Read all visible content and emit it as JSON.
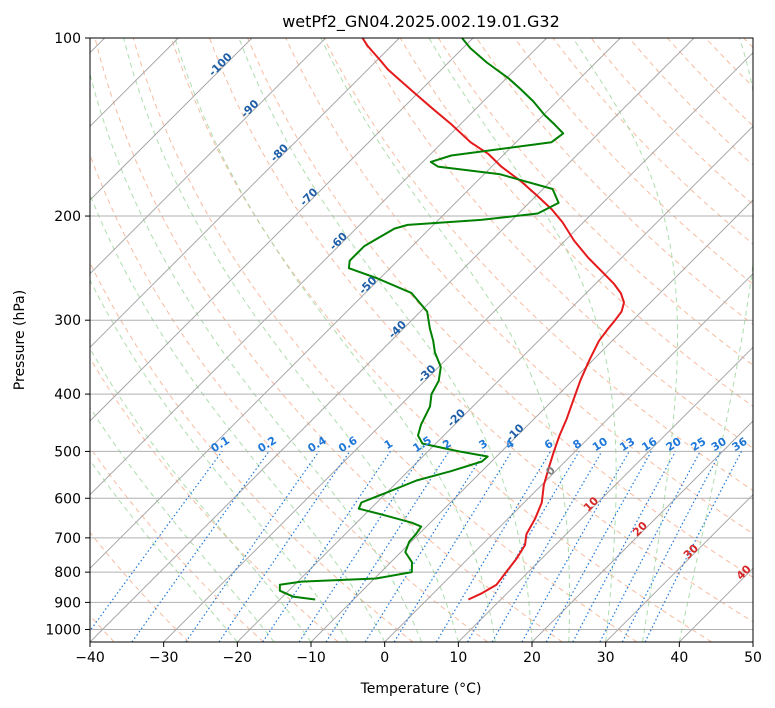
{
  "chart_data": {
    "type": "line",
    "title": "wetPf2_GN04.2025.002.19.01.G32",
    "xlabel": "Temperature (°C)",
    "ylabel": "Pressure (hPa)",
    "xlim": [
      -40,
      50
    ],
    "ylim": [
      1050,
      100
    ],
    "y_scale": "log",
    "x_ticks": [
      -40,
      -30,
      -20,
      -10,
      0,
      10,
      20,
      30,
      40,
      50
    ],
    "x_tick_labels": [
      "−40",
      "−30",
      "−20",
      "−10",
      "0",
      "10",
      "20",
      "30",
      "40",
      "50"
    ],
    "y_ticks": [
      100,
      200,
      300,
      400,
      500,
      600,
      700,
      800,
      900,
      1000
    ],
    "y_tick_labels": [
      "100",
      "200",
      "300",
      "400",
      "500",
      "600",
      "700",
      "800",
      "900",
      "1000"
    ],
    "grid": true,
    "skew": "skew-T log-P diagram",
    "colors": {
      "temperature": "#e41a1c",
      "dewpoint": "#008000",
      "dry_adiabat": "#f4a582",
      "moist_adiabat": "#98d598",
      "mixing_ratio": "#1f78d8",
      "isotherm": "#888888",
      "isotherm_label_cold": "#1f5fa8",
      "isotherm_label_warm": "#d62728"
    },
    "series": [
      {
        "name": "",
        "role": "temperature",
        "points": [
          [
            5.6,
            890
          ],
          [
            6.5,
            870
          ],
          [
            7.4,
            840
          ],
          [
            7.0,
            800
          ],
          [
            6.6,
            760
          ],
          [
            5.9,
            720
          ],
          [
            4.6,
            690
          ],
          [
            3.7,
            650
          ],
          [
            2.4,
            610
          ],
          [
            0.3,
            570
          ],
          [
            -1.5,
            530
          ],
          [
            -2.9,
            500
          ],
          [
            -4.3,
            470
          ],
          [
            -5.6,
            440
          ],
          [
            -7.2,
            410
          ],
          [
            -8.9,
            380
          ],
          [
            -10.5,
            350
          ],
          [
            -11.8,
            325
          ],
          [
            -12.2,
            310
          ],
          [
            -12.4,
            300
          ],
          [
            -12.7,
            290
          ],
          [
            -13.6,
            280
          ],
          [
            -15.3,
            270
          ],
          [
            -17.6,
            260
          ],
          [
            -20.3,
            250
          ],
          [
            -24.6,
            235
          ],
          [
            -28.8,
            220
          ],
          [
            -32.8,
            205
          ],
          [
            -36.0,
            195
          ],
          [
            -39.8,
            185
          ],
          [
            -43.9,
            175
          ],
          [
            -48.7,
            165
          ],
          [
            -52.2,
            157
          ],
          [
            -56.2,
            150
          ],
          [
            -61.2,
            140
          ],
          [
            -65.7,
            132
          ],
          [
            -70.4,
            124
          ],
          [
            -74.1,
            118
          ],
          [
            -77.3,
            113
          ],
          [
            -79.6,
            109
          ],
          [
            -83.3,
            103
          ],
          [
            -85.0,
            100
          ]
        ]
      },
      {
        "name": "",
        "role": "dewpoint",
        "points": [
          [
            -15.2,
            890
          ],
          [
            -18.6,
            880
          ],
          [
            -21.2,
            860
          ],
          [
            -22.0,
            840
          ],
          [
            -19.5,
            830
          ],
          [
            -9.8,
            820
          ],
          [
            -5.8,
            800
          ],
          [
            -7.1,
            770
          ],
          [
            -9.4,
            740
          ],
          [
            -10.3,
            710
          ],
          [
            -10.4,
            690
          ],
          [
            -10.7,
            670
          ],
          [
            -12.5,
            660
          ],
          [
            -17.5,
            640
          ],
          [
            -21.6,
            625
          ],
          [
            -22.1,
            610
          ],
          [
            -20.3,
            590
          ],
          [
            -17.6,
            560
          ],
          [
            -14.2,
            540
          ],
          [
            -11.3,
            520
          ],
          [
            -11.2,
            510
          ],
          [
            -15.8,
            500
          ],
          [
            -21.8,
            485
          ],
          [
            -23.5,
            470
          ],
          [
            -24.6,
            450
          ],
          [
            -25.8,
            420
          ],
          [
            -27.3,
            400
          ],
          [
            -28.1,
            380
          ],
          [
            -29.7,
            360
          ],
          [
            -32.5,
            340
          ],
          [
            -34.3,
            325
          ],
          [
            -36.4,
            310
          ],
          [
            -39.1,
            290
          ],
          [
            -43.7,
            270
          ],
          [
            -50.3,
            255
          ],
          [
            -55.6,
            245
          ],
          [
            -56.5,
            238
          ],
          [
            -56.5,
            225
          ],
          [
            -54.8,
            210
          ],
          [
            -53.5,
            207
          ],
          [
            -44.2,
            203
          ],
          [
            -37.4,
            198
          ],
          [
            -36.0,
            190
          ],
          [
            -38.7,
            180
          ],
          [
            -47.8,
            170
          ],
          [
            -57.3,
            165
          ],
          [
            -58.9,
            162
          ],
          [
            -57.0,
            158
          ],
          [
            -45.2,
            150
          ],
          [
            -44.8,
            145
          ],
          [
            -47.2,
            140
          ],
          [
            -49.8,
            135
          ],
          [
            -53.2,
            128
          ],
          [
            -56.6,
            122
          ],
          [
            -59.7,
            117
          ],
          [
            -64.8,
            110
          ],
          [
            -69.0,
            104
          ],
          [
            -71.5,
            100
          ]
        ]
      }
    ],
    "isotherm_labels": [
      {
        "text": "-100",
        "t": -100
      },
      {
        "text": "-90",
        "t": -90
      },
      {
        "text": "-80",
        "t": -80
      },
      {
        "text": "-70",
        "t": -70
      },
      {
        "text": "-60",
        "t": -60
      },
      {
        "text": "-50",
        "t": -50
      },
      {
        "text": "-40",
        "t": -40
      },
      {
        "text": "-30",
        "t": -30
      },
      {
        "text": "-20",
        "t": -20
      },
      {
        "text": "-10",
        "t": -10
      },
      {
        "text": "0",
        "t": 0
      },
      {
        "text": "10",
        "t": 10
      },
      {
        "text": "20",
        "t": 20
      },
      {
        "text": "30",
        "t": 30
      },
      {
        "text": "40",
        "t": 40
      }
    ],
    "mixing_ratio_labels": [
      "0.1",
      "0.2",
      "0.4",
      "0.6",
      "1",
      "1.5",
      "2",
      "3",
      "4",
      "6",
      "8",
      "10",
      "13",
      "16",
      "20",
      "25",
      "30",
      "36"
    ],
    "mixing_ratio_values": [
      0.1,
      0.2,
      0.4,
      0.6,
      1,
      1.5,
      2,
      3,
      4,
      6,
      8,
      10,
      13,
      16,
      20,
      25,
      30,
      36
    ]
  }
}
